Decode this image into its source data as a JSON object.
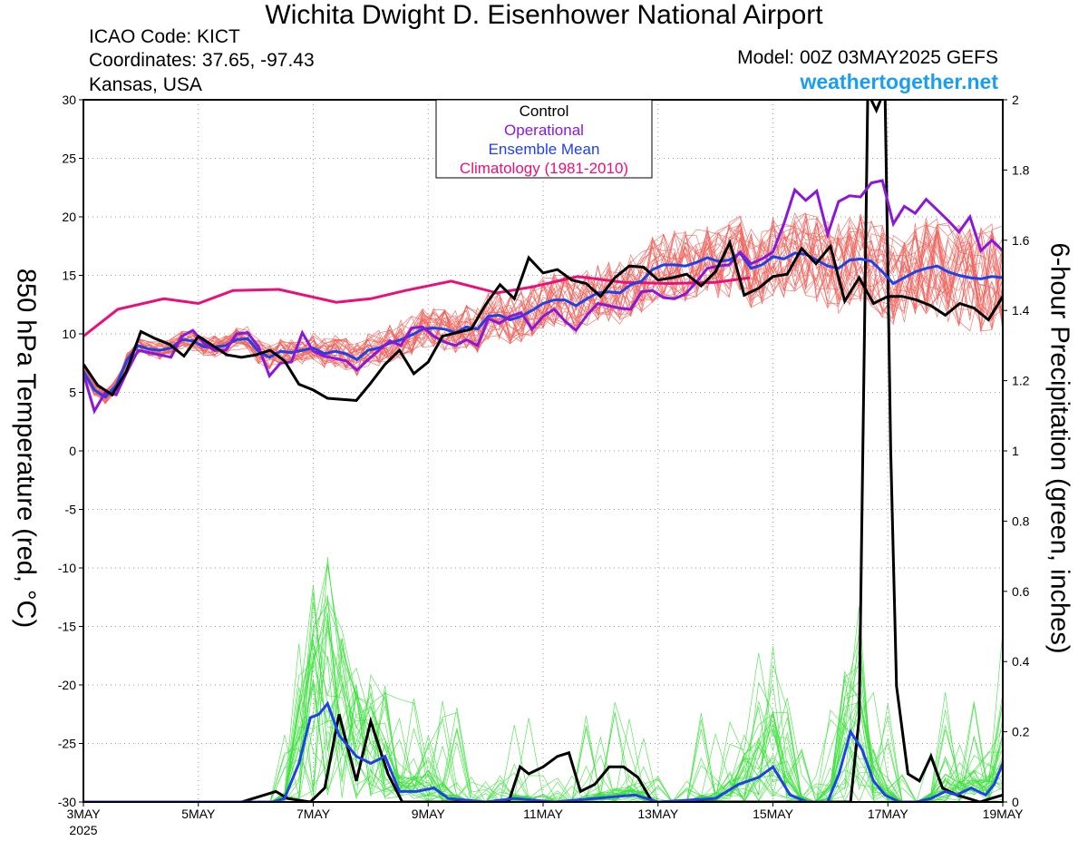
{
  "header": {
    "title": "Wichita Dwight D. Eisenhower National Airport",
    "icao": "ICAO Code: KICT",
    "coords": "Coordinates: 37.65, -97.43",
    "location": "Kansas, USA",
    "model": "Model: 00Z 03MAY2025 GEFS",
    "site": "weathertogether.net"
  },
  "chart_data": {
    "type": "line",
    "ylabel": "850 hPa Temperature (red, °C)",
    "y2label": "6-hour Precipitation (green, inches)",
    "ylim": [
      -30,
      30
    ],
    "y2lim": [
      0,
      2
    ],
    "xlim": [
      0,
      16
    ],
    "yticks": [
      30,
      25,
      20,
      15,
      10,
      5,
      0,
      -5,
      -10,
      -15,
      -20,
      -25,
      -30
    ],
    "y2ticks": [
      "2",
      "1.8",
      "1.6",
      "1.4",
      "1.2",
      "1",
      "0.8",
      "0.6",
      "0.4",
      "0.2",
      "0"
    ],
    "xticks": [
      {
        "x": 0,
        "label": "3MAY"
      },
      {
        "x": 2,
        "label": "5MAY"
      },
      {
        "x": 4,
        "label": "7MAY"
      },
      {
        "x": 6,
        "label": "9MAY"
      },
      {
        "x": 8,
        "label": "11MAY"
      },
      {
        "x": 10,
        "label": "13MAY"
      },
      {
        "x": 12,
        "label": "15MAY"
      },
      {
        "x": 14,
        "label": "17MAY"
      },
      {
        "x": 16,
        "label": "19MAY"
      }
    ],
    "x_year_label": "2025",
    "grid": true,
    "legend": {
      "position": "top-center",
      "entries": [
        {
          "label": "Control",
          "color": "#000000"
        },
        {
          "label": "Operational",
          "color": "#8a18d6"
        },
        {
          "label": "Ensemble Mean",
          "color": "#2040e8"
        },
        {
          "label": "Climatology (1981-2010)",
          "color": "#e8107a"
        }
      ]
    },
    "colors": {
      "members_temp": "#f0625a",
      "members_precip": "#3ee03e"
    },
    "temperature": {
      "climatology": [
        [
          0,
          9.8
        ],
        [
          0.6,
          12.1
        ],
        [
          1.4,
          13.0
        ],
        [
          2.0,
          12.6
        ],
        [
          2.6,
          13.7
        ],
        [
          3.4,
          13.8
        ],
        [
          4.4,
          12.7
        ],
        [
          5.0,
          13.0
        ],
        [
          5.6,
          13.7
        ],
        [
          6.4,
          14.5
        ],
        [
          7.2,
          13.5
        ],
        [
          7.8,
          14.0
        ],
        [
          8.6,
          14.9
        ],
        [
          9.4,
          14.4
        ],
        [
          10.2,
          14.3
        ],
        [
          11.0,
          14.4
        ],
        [
          11.6,
          14.8
        ]
      ],
      "control": [
        7.4,
        5.6,
        4.8,
        6.8,
        10.2,
        9.6,
        9.1,
        8.1,
        9.8,
        9.0,
        8.2,
        8.0,
        8.2,
        8.6,
        7.7,
        5.7,
        5.2,
        4.5,
        4.4,
        4.3,
        5.8,
        7.4,
        8.6,
        6.6,
        7.6,
        9.8,
        10.1,
        10.4,
        12.5,
        14.2,
        13.0,
        16.5,
        15.2,
        15.5,
        14.6,
        14.3,
        13.2,
        14.8,
        15.8,
        15.7,
        14.6,
        14.8,
        15.1,
        14.1,
        15.3,
        17.8,
        13.3,
        13.9,
        14.9,
        15.1,
        17.3,
        16.0,
        17.5,
        12.8,
        14.8,
        12.6,
        13.2,
        13.2,
        12.9,
        12.4,
        11.6,
        12.6,
        12.2,
        11.2,
        13.2
      ],
      "operational": [
        6.6,
        3.4,
        5.0,
        4.8,
        6.8,
        8.6,
        8.4,
        8.2,
        8.0,
        9.8,
        10.3,
        9.2,
        8.6,
        8.6,
        10.0,
        10.1,
        8.9,
        6.4,
        7.5,
        7.6,
        10.1,
        8.5,
        8.1,
        7.9,
        7.7,
        6.9,
        7.8,
        8.6,
        9.4,
        9.0,
        10.5,
        10.6,
        9.8,
        9.3,
        9.0,
        9.5,
        9.0,
        11.3,
        10.9,
        11.5,
        11.8,
        10.4,
        11.5,
        12.1,
        11.1,
        10.3,
        11.6,
        12.6,
        12.4,
        12.2,
        12.1,
        13.6,
        13.7,
        13.1,
        13.0,
        13.4,
        14.4,
        15.6,
        15.8,
        15.9,
        17.0,
        16.0,
        16.4,
        17.0,
        19.4,
        22.3,
        21.4,
        22.2,
        18.5,
        21.3,
        21.8,
        21.7,
        22.9,
        23.1,
        19.4,
        20.9,
        20.3,
        21.5,
        20.6,
        19.7,
        18.7,
        20.0,
        17.1,
        18.0,
        17.1
      ],
      "mean": [
        6.8,
        5.2,
        4.6,
        5.6,
        7.8,
        9.0,
        8.7,
        8.6,
        8.8,
        9.5,
        9.4,
        8.9,
        8.9,
        9.0,
        9.5,
        9.6,
        8.5,
        8.0,
        8.5,
        8.4,
        8.6,
        8.8,
        8.3,
        8.5,
        8.3,
        7.8,
        8.6,
        8.8,
        9.2,
        9.5,
        9.9,
        10.4,
        10.5,
        10.4,
        10.1,
        10.6,
        10.4,
        11.5,
        11.6,
        11.2,
        11.5,
        12.0,
        12.6,
        12.9,
        12.9,
        12.4,
        13.0,
        13.5,
        13.6,
        13.5,
        14.2,
        14.5,
        15.5,
        15.9,
        15.9,
        15.8,
        16.1,
        16.5,
        16.2,
        16.3,
        16.9,
        15.6,
        15.9,
        16.6,
        16.4,
        16.9,
        16.8,
        16.3,
        15.8,
        15.6,
        16.3,
        16.4,
        16.2,
        15.3,
        14.3,
        14.8,
        15.3,
        15.6,
        15.8,
        15.3,
        15.0,
        14.8,
        14.7,
        14.9,
        14.8
      ]
    },
    "precipitation": {
      "control": [
        [
          0,
          0
        ],
        [
          2.75,
          0
        ],
        [
          3.15,
          0.02
        ],
        [
          3.35,
          0.03
        ],
        [
          3.55,
          0.01
        ],
        [
          3.95,
          0.0
        ],
        [
          4.2,
          0.04
        ],
        [
          4.45,
          0.25
        ],
        [
          4.75,
          0.06
        ],
        [
          5.0,
          0.23
        ],
        [
          5.3,
          0.08
        ],
        [
          5.55,
          0.0
        ],
        [
          7.4,
          0.0
        ],
        [
          7.6,
          0.1
        ],
        [
          7.75,
          0.08
        ],
        [
          8.0,
          0.1
        ],
        [
          8.25,
          0.13
        ],
        [
          8.45,
          0.14
        ],
        [
          8.65,
          0.03
        ],
        [
          8.9,
          0.05
        ],
        [
          9.15,
          0.1
        ],
        [
          9.4,
          0.1
        ],
        [
          9.65,
          0.07
        ],
        [
          9.9,
          0.0
        ],
        [
          13.35,
          0.0
        ],
        [
          13.5,
          0.24
        ],
        [
          13.65,
          2.02
        ],
        [
          13.8,
          1.97
        ],
        [
          13.95,
          2.03
        ],
        [
          14.05,
          1.0
        ],
        [
          14.15,
          0.33
        ],
        [
          14.35,
          0.08
        ],
        [
          14.55,
          0.06
        ],
        [
          14.75,
          0.13
        ],
        [
          14.95,
          0.04
        ],
        [
          15.2,
          0.02
        ],
        [
          15.4,
          0.01
        ],
        [
          15.6,
          0.0
        ],
        [
          15.8,
          0.01
        ],
        [
          16.0,
          0.02
        ]
      ],
      "mean": [
        [
          0,
          0
        ],
        [
          3.3,
          0
        ],
        [
          3.5,
          0.01
        ],
        [
          3.75,
          0.11
        ],
        [
          3.95,
          0.24
        ],
        [
          4.1,
          0.25
        ],
        [
          4.25,
          0.28
        ],
        [
          4.45,
          0.19
        ],
        [
          4.75,
          0.13
        ],
        [
          5.0,
          0.11
        ],
        [
          5.25,
          0.13
        ],
        [
          5.5,
          0.03
        ],
        [
          5.8,
          0.03
        ],
        [
          6.1,
          0.04
        ],
        [
          6.35,
          0.01
        ],
        [
          7.0,
          0.0
        ],
        [
          7.5,
          0.01
        ],
        [
          8.2,
          0.0
        ],
        [
          9.6,
          0.02
        ],
        [
          10.0,
          0.0
        ],
        [
          11.0,
          0.01
        ],
        [
          11.4,
          0.05
        ],
        [
          11.75,
          0.07
        ],
        [
          12.0,
          0.1
        ],
        [
          12.3,
          0.02
        ],
        [
          12.6,
          0.0
        ],
        [
          12.95,
          0.0
        ],
        [
          13.15,
          0.08
        ],
        [
          13.35,
          0.2
        ],
        [
          13.55,
          0.15
        ],
        [
          13.75,
          0.06
        ],
        [
          13.95,
          0.02
        ],
        [
          14.2,
          0.0
        ],
        [
          14.5,
          0.0
        ],
        [
          14.75,
          0.01
        ],
        [
          15.0,
          0.03
        ],
        [
          15.2,
          0.02
        ],
        [
          15.45,
          0.04
        ],
        [
          15.7,
          0.02
        ],
        [
          15.85,
          0.05
        ],
        [
          16.0,
          0.11
        ]
      ]
    }
  }
}
